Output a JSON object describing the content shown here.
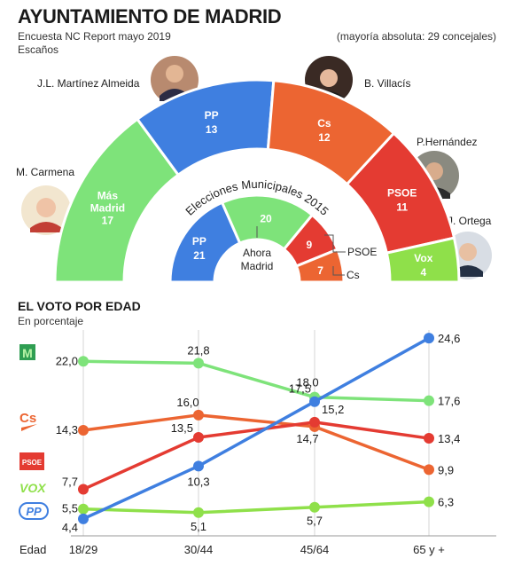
{
  "header": {
    "title": "AYUNTAMIENTO DE MADRID",
    "subtitle1": "Encuesta NC Report mayo 2019",
    "subtitle2": "Escaños",
    "majority_note": "(mayoría absoluta: 29 concejales)"
  },
  "candidates": {
    "almeida": "J.L. Martínez Almeida",
    "villacis": "B. Villacís",
    "carmena": "M. Carmena",
    "hernandez": "P.Hernández",
    "ortega": "J. Ortega"
  },
  "parliament_2019": [
    {
      "party": "Más Madrid",
      "line1": "Más",
      "line2": "Madrid",
      "seats": 17,
      "color": "#7ee37a"
    },
    {
      "party": "PP",
      "line1": "PP",
      "line2": "",
      "seats": 13,
      "color": "#3f7fe0"
    },
    {
      "party": "Cs",
      "line1": "Cs",
      "line2": "",
      "seats": 12,
      "color": "#ec6532"
    },
    {
      "party": "PSOE",
      "line1": "PSOE",
      "line2": "",
      "seats": 11,
      "color": "#e43b32"
    },
    {
      "party": "Vox",
      "line1": "Vox",
      "line2": "",
      "seats": 4,
      "color": "#8fe04a"
    }
  ],
  "elections_2015": {
    "label": "Elecciones Municipales 2015",
    "parties": [
      {
        "party": "PP",
        "line1": "PP",
        "seats": 21,
        "color": "#3f7fe0"
      },
      {
        "party": "Ahora Madrid",
        "line1": "",
        "seats": 20,
        "color": "#7ee37a"
      },
      {
        "party": "PSOE",
        "line1": "",
        "seats": 9,
        "color": "#e43b32"
      },
      {
        "party": "Cs",
        "line1": "",
        "seats": 7,
        "color": "#ec6532"
      }
    ],
    "callouts": {
      "ahora1": "Ahora",
      "ahora2": "Madrid",
      "psoe": "PSOE",
      "cs": "Cs"
    }
  },
  "vote_section": {
    "title": "EL VOTO POR EDAD",
    "subtitle": "En porcentaje",
    "x_axis_label": "Edad"
  },
  "chart_data": {
    "type": "line",
    "x": [
      "18/29",
      "30/44",
      "45/64",
      "65 y +"
    ],
    "series": [
      {
        "name": "Más Madrid",
        "color": "#7ee37a",
        "values": [
          22.0,
          21.8,
          18.0,
          17.6
        ],
        "labels": [
          "22,0",
          "21,8",
          "18,0",
          "17,6"
        ]
      },
      {
        "name": "Cs",
        "color": "#ec6532",
        "values": [
          14.3,
          16.0,
          14.7,
          9.9
        ],
        "labels": [
          "14,3",
          "16,0",
          "14,7",
          "9,9"
        ]
      },
      {
        "name": "PSOE",
        "color": "#e43b32",
        "values": [
          7.7,
          13.5,
          15.2,
          13.4
        ],
        "labels": [
          "7,7",
          "13,5",
          "15,2",
          "13,4"
        ]
      },
      {
        "name": "Vox",
        "color": "#8fe04a",
        "values": [
          5.5,
          5.1,
          5.7,
          6.3
        ],
        "labels": [
          "5,5",
          "5,1",
          "5,7",
          "6,3"
        ]
      },
      {
        "name": "PP",
        "color": "#3f7fe0",
        "values": [
          4.4,
          10.3,
          17.5,
          24.6
        ],
        "labels": [
          "4,4",
          "10,3",
          "17,5",
          "24,6"
        ]
      }
    ],
    "grid": true
  }
}
